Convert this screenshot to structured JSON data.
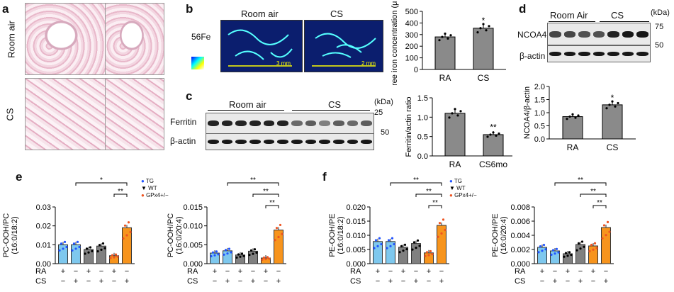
{
  "panels": {
    "a": {
      "label": "a",
      "row1": "Room air",
      "row2": "CS"
    },
    "b": {
      "label": "b",
      "isotope": "56Fe",
      "col1": "Room air",
      "col2": "CS",
      "scale1": "3 mm",
      "scale2": "2 mm"
    },
    "c": {
      "label": "c",
      "col1": "Room air",
      "col2": "CS",
      "kda": "(kDa)",
      "row1": "Ferritin",
      "row2": "β-actin",
      "mw1": "25",
      "mw2": "50"
    },
    "d": {
      "label": "d",
      "col1": "Room Air",
      "col2": "CS",
      "kda": "(kDa)",
      "row1": "NCOA4",
      "row2": "β-actin",
      "mw1": "75",
      "mw2": "50"
    },
    "e": {
      "label": "e"
    },
    "f": {
      "label": "f"
    }
  },
  "legend": {
    "tg": "TG",
    "wt": "WT",
    "gpx": "GPx4+/−"
  },
  "treatment": {
    "ra": "RA",
    "cs": "CS",
    "plus": "+",
    "minus": "−",
    "ra_pattern": [
      "+",
      "−",
      "+",
      "−",
      "+",
      "−"
    ],
    "cs_pattern": [
      "−",
      "+",
      "−",
      "+",
      "−",
      "+"
    ]
  },
  "colors": {
    "tg": "#7ec8ee",
    "wt": "#808080",
    "gpx": "#f7941d",
    "dark": "#8a8a8a"
  },
  "chart_data": [
    {
      "id": "b",
      "type": "bar",
      "categories": [
        "RA",
        "CS"
      ],
      "values": [
        280,
        355
      ],
      "ylabel": "Free iron concentration (μg/l)",
      "ylim": [
        0,
        500
      ],
      "yticks": [
        "0",
        "100",
        "200",
        "300",
        "400",
        "500"
      ],
      "sig": [
        "",
        "*"
      ]
    },
    {
      "id": "c",
      "type": "bar",
      "categories": [
        "RA",
        "CS6mo"
      ],
      "values": [
        1.1,
        0.55
      ],
      "ylabel": "Ferritin/actin ratio",
      "ylim": [
        0,
        1.5
      ],
      "yticks": [
        "0.0",
        "0.5",
        "1.0",
        "1.5"
      ],
      "sig": [
        "",
        "**"
      ]
    },
    {
      "id": "d",
      "type": "bar",
      "categories": [
        "RA",
        "CS"
      ],
      "values": [
        0.85,
        1.3
      ],
      "ylabel": "NCOA4/β-actin",
      "ylim": [
        0,
        2.0
      ],
      "yticks": [
        "0.0",
        "0.5",
        "1.0",
        "1.5",
        "2.0"
      ],
      "sig": [
        "",
        "*"
      ]
    },
    {
      "id": "e1",
      "type": "bar",
      "values": [
        0.01,
        0.01,
        0.0075,
        0.0093,
        0.0042,
        0.019
      ],
      "ylabel": "PC-OOH/PC (16:0/18:2)",
      "ylim": [
        0,
        0.03
      ],
      "yticks": [
        "0.00",
        "0.01",
        "0.02",
        "0.03"
      ],
      "sig": [
        "*",
        "**"
      ]
    },
    {
      "id": "e2",
      "type": "bar",
      "values": [
        0.0028,
        0.0034,
        0.0023,
        0.0033,
        0.0015,
        0.0089
      ],
      "ylabel": "PC-OOH/PC (16:0/20:4)",
      "ylim": [
        0,
        0.015
      ],
      "yticks": [
        "0.000",
        "0.005",
        "0.010",
        "0.015"
      ],
      "sig": [
        "**",
        "**",
        "**"
      ]
    },
    {
      "id": "f1",
      "type": "bar",
      "values": [
        0.0078,
        0.0078,
        0.0058,
        0.0071,
        0.0038,
        0.0135
      ],
      "ylabel": "PE-OOH/PE (16:0/18:2)",
      "ylim": [
        0,
        0.02
      ],
      "yticks": [
        "0.000",
        "0.005",
        "0.010",
        "0.015",
        "0.020"
      ],
      "sig": [
        "**",
        "**",
        "**"
      ]
    },
    {
      "id": "f2",
      "type": "bar",
      "values": [
        0.0023,
        0.0018,
        0.0014,
        0.0027,
        0.0025,
        0.0051
      ],
      "ylabel": "PE-OOH/PE (16:0/20:4)",
      "ylim": [
        0,
        0.008
      ],
      "yticks": [
        "0.000",
        "0.002",
        "0.004",
        "0.006",
        "0.008"
      ],
      "sig": [
        "**",
        "**",
        "**"
      ]
    }
  ]
}
